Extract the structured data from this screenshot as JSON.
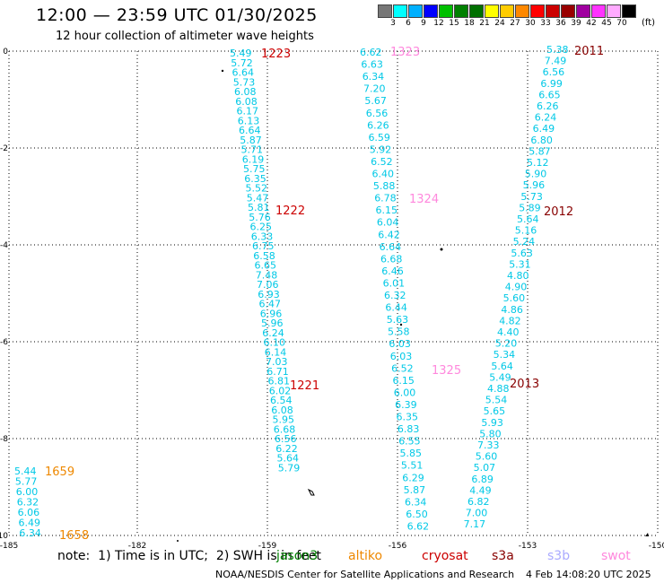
{
  "header": {
    "title": "12:00 — 23:59 UTC 01/30/2025",
    "subtitle": "12 hour collection of altimeter wave heights"
  },
  "legend": {
    "colors": [
      "#777777",
      "#00ffff",
      "#00b0ff",
      "#0000ff",
      "#00c000",
      "#008000",
      "#007000",
      "#ffff00",
      "#ffcc00",
      "#ff8800",
      "#ff0000",
      "#cc0000",
      "#990000",
      "#a000a0",
      "#ff33ff",
      "#ffaaff",
      "#000000"
    ],
    "labels": [
      "3",
      "6",
      "9",
      "12",
      "15",
      "18",
      "21",
      "24",
      "27",
      "30",
      "33",
      "36",
      "39",
      "42",
      "45",
      "70"
    ],
    "unit": "(ft)"
  },
  "axes": {
    "xticks": [
      "-185",
      "-182",
      "-159",
      "-156",
      "-153",
      "-150"
    ],
    "yticks": [
      "0",
      "-2",
      "-4",
      "-6",
      "-8",
      "-10"
    ]
  },
  "tracks": [
    {
      "color": "#00c8e6",
      "values": [
        "5.49",
        "5.72",
        "6.64",
        "5.73",
        "6.08",
        "6.08",
        "6.17",
        "6.13",
        "6.64",
        "5.87",
        "5.71",
        "6.19",
        "5.75",
        "6.35",
        "5.52",
        "5.47",
        "5.81",
        "5.76",
        "6.25",
        "6.33",
        "6.75",
        "6.58",
        "6.65",
        "7.48",
        "7.06",
        "6.93",
        "6.47",
        "6.96",
        "5.96",
        "6.24",
        "6.10",
        "6.14",
        "7.03",
        "6.71",
        "6.81",
        "6.02",
        "6.54",
        "6.08",
        "5.95",
        "6.68",
        "6.56",
        "6.22",
        "5.64",
        "5.79"
      ]
    },
    {
      "color": "#00c8e6",
      "values": [
        "6.62",
        "6.63",
        "6.34",
        "7.20",
        "5.67",
        "6.56",
        "6.26",
        "6.59",
        "5.92",
        "6.52",
        "6.40",
        "5.88",
        "6.78",
        "6.15",
        "6.04",
        "6.42",
        "6.64",
        "6.68",
        "6.46",
        "6.01",
        "6.32",
        "6.44",
        "5.63",
        "5.58",
        "6.03",
        "6.03",
        "6.52",
        "6.15",
        "6.00",
        "6.39",
        "6.35",
        "6.83",
        "6.55",
        "5.85",
        "5.51",
        "6.29",
        "5.87",
        "6.34",
        "6.50",
        "6.62"
      ]
    },
    {
      "color": "#00c8e6",
      "values": [
        "5.38",
        "7.49",
        "6.56",
        "6.99",
        "6.65",
        "6.26",
        "6.24",
        "6.49",
        "6.80",
        "5.87",
        "5.12",
        "5.90",
        "5.96",
        "5.73",
        "5.89",
        "5.64",
        "5.16",
        "5.24",
        "5.63",
        "5.31",
        "4.80",
        "4.90",
        "5.60",
        "4.86",
        "4.82",
        "4.40",
        "5.20",
        "5.34",
        "5.64",
        "5.49",
        "4.88",
        "5.54",
        "5.65",
        "5.93",
        "5.80",
        "7.33",
        "5.60",
        "5.07",
        "6.89",
        "4.49",
        "6.82",
        "7.00",
        "7.17"
      ]
    },
    {
      "color": "#00c8e6",
      "values": [
        "5.44",
        "5.77",
        "6.00",
        "6.32",
        "6.06",
        "6.49",
        "6.34"
      ]
    }
  ],
  "passes": [
    {
      "label": "1223",
      "color": "#cc0000"
    },
    {
      "label": "1222",
      "color": "#cc0000"
    },
    {
      "label": "1221",
      "color": "#cc0000"
    },
    {
      "label": "1323",
      "color": "#ff88dd"
    },
    {
      "label": "1324",
      "color": "#ff88dd"
    },
    {
      "label": "1325",
      "color": "#ff88dd"
    },
    {
      "label": "2011",
      "color": "#880000"
    },
    {
      "label": "2012",
      "color": "#880000"
    },
    {
      "label": "2013",
      "color": "#880000"
    },
    {
      "label": "1659",
      "color": "#ee8800"
    },
    {
      "label": "1658",
      "color": "#ee8800"
    }
  ],
  "notes": "note:  1) Time is in UTC;  2) SWH is in feet",
  "satellites": [
    {
      "name": "jason3",
      "color": "#008000"
    },
    {
      "name": "altiko",
      "color": "#ee8800"
    },
    {
      "name": "cryosat",
      "color": "#cc0000"
    },
    {
      "name": "s3a",
      "color": "#880000"
    },
    {
      "name": "s3b",
      "color": "#aaaaff"
    },
    {
      "name": "swot",
      "color": "#ff88dd"
    }
  ],
  "footer": {
    "center": "NOAA/NESDIS Center for Satellite Applications and Research",
    "timestamp": "4 Feb 14:08:20 UTC 2025"
  }
}
